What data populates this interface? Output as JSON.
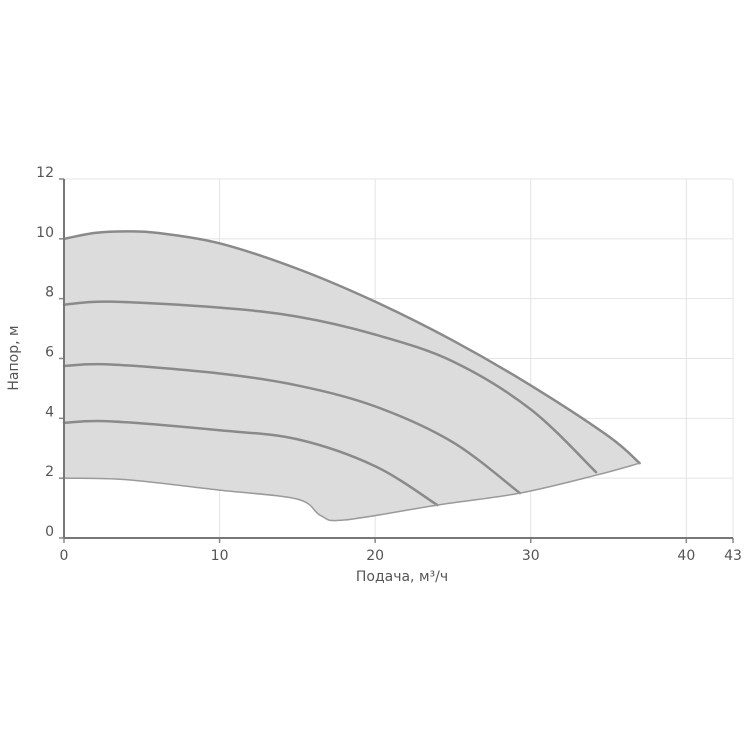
{
  "chart_data": {
    "type": "line",
    "xlabel": "Подача, м³/ч",
    "ylabel": "Напор, м",
    "xlim": [
      0,
      43
    ],
    "xticks": [
      0,
      10,
      20,
      30,
      40,
      43
    ],
    "ylim": [
      0,
      12
    ],
    "yticks": [
      0,
      2,
      4,
      6,
      8,
      10,
      12
    ],
    "grid": true,
    "area_color": "#dcdcdc",
    "series": [
      {
        "color": "#8a8a8a",
        "x": [
          0,
          2,
          4,
          6,
          10,
          15,
          20,
          25,
          30,
          35,
          37
        ],
        "values": [
          10.0,
          10.2,
          10.25,
          10.2,
          9.85,
          9.0,
          7.9,
          6.6,
          5.1,
          3.4,
          2.5
        ]
      },
      {
        "color": "#8a8a8a",
        "x": [
          0,
          3,
          10,
          15,
          20,
          25,
          30,
          34.2
        ],
        "values": [
          7.8,
          7.9,
          7.7,
          7.4,
          6.8,
          5.9,
          4.3,
          2.2
        ]
      },
      {
        "color": "#8a8a8a",
        "x": [
          0,
          3,
          10,
          15,
          20,
          25,
          29.3
        ],
        "values": [
          5.75,
          5.8,
          5.5,
          5.1,
          4.4,
          3.2,
          1.5
        ]
      },
      {
        "color": "#8a8a8a",
        "x": [
          0,
          3,
          10,
          15,
          20,
          24
        ],
        "values": [
          3.85,
          3.9,
          3.6,
          3.3,
          2.4,
          1.1
        ]
      },
      {
        "color": "#9a9a9a",
        "x": [
          0,
          4,
          10,
          15,
          16.5,
          18,
          24,
          29.3,
          34.2,
          37
        ],
        "values": [
          2.0,
          1.95,
          1.6,
          1.3,
          0.75,
          0.6,
          1.1,
          1.5,
          2.1,
          2.5
        ]
      }
    ]
  }
}
